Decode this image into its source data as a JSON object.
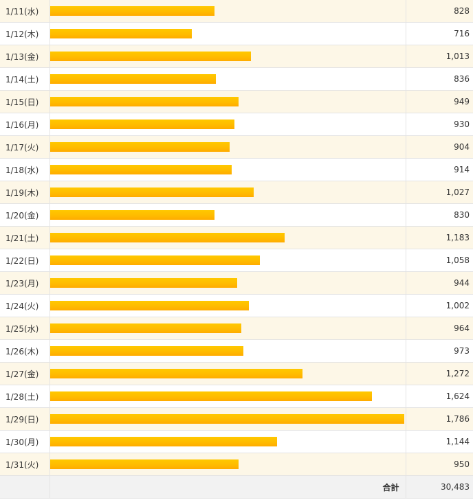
{
  "chart_data": {
    "type": "bar",
    "categories": [
      "1/11(水)",
      "1/12(木)",
      "1/13(金)",
      "1/14(土)",
      "1/15(日)",
      "1/16(月)",
      "1/17(火)",
      "1/18(水)",
      "1/19(木)",
      "1/20(金)",
      "1/21(土)",
      "1/22(日)",
      "1/23(月)",
      "1/24(火)",
      "1/25(水)",
      "1/26(木)",
      "1/27(金)",
      "1/28(土)",
      "1/29(日)",
      "1/30(月)",
      "1/31(火)"
    ],
    "values": [
      828,
      716,
      1013,
      836,
      949,
      930,
      904,
      914,
      1027,
      830,
      1183,
      1058,
      944,
      1002,
      964,
      973,
      1272,
      1624,
      1786,
      1144,
      950
    ],
    "value_labels": [
      "828",
      "716",
      "1,013",
      "836",
      "949",
      "930",
      "904",
      "914",
      "1,027",
      "830",
      "1,183",
      "1,058",
      "944",
      "1,002",
      "964",
      "973",
      "1,272",
      "1,624",
      "1,786",
      "1,144",
      "950"
    ],
    "orientation": "horizontal",
    "bar_color": "#ffbc00",
    "xlim": [
      0,
      1786
    ]
  },
  "summary": {
    "total_label": "合計",
    "total_value": "30,483"
  }
}
